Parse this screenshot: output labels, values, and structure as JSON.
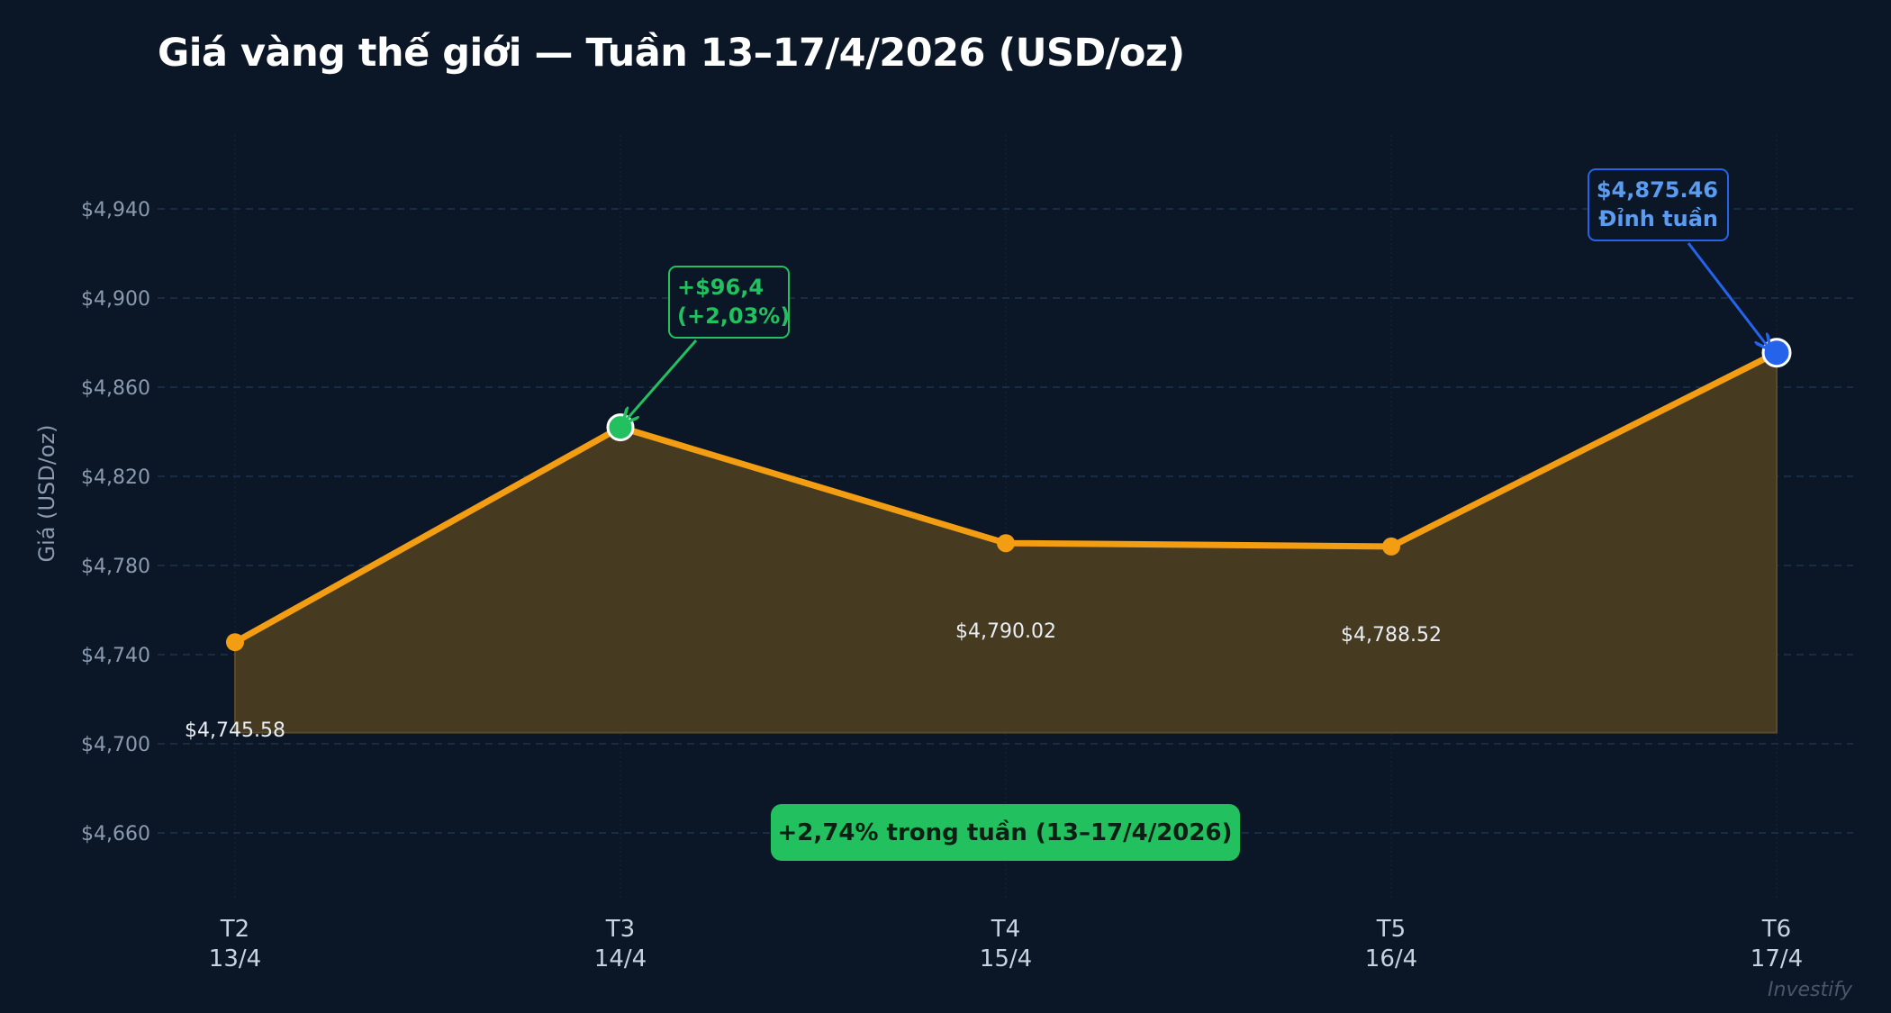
{
  "title": "Giá vàng thế giới — Tuần 13–17/4/2026 (USD/oz)",
  "colors": {
    "background": "#0b1727",
    "line": "#f29d12",
    "area_fill": "#463a21",
    "grid": "#1e3350",
    "gain": "#22c05f",
    "peak": "#2563eb",
    "peak_text": "#5b9cf0",
    "tick_text": "#8a9bb0"
  },
  "chart_data": {
    "type": "area",
    "title": "Giá vàng thế giới — Tuần 13–17/4/2026 (USD/oz)",
    "xlabel": "",
    "ylabel": "Giá (USD/oz)",
    "ylim": [
      4628,
      4990
    ],
    "yticks": [
      4660,
      4700,
      4740,
      4780,
      4820,
      4860,
      4900,
      4940
    ],
    "ytick_labels": [
      "$4,660",
      "$4,700",
      "$4,740",
      "$4,780",
      "$4,820",
      "$4,860",
      "$4,900",
      "$4,940"
    ],
    "grid": true,
    "legend": null,
    "area_baseline": 4705,
    "categories": [
      "T2\n13/4",
      "T3\n14/4",
      "T4\n15/4",
      "T5\n16/4",
      "T6\n17/4"
    ],
    "x_labels": [
      {
        "day": "T2",
        "date": "13/4"
      },
      {
        "day": "T3",
        "date": "14/4"
      },
      {
        "day": "T4",
        "date": "15/4"
      },
      {
        "day": "T5",
        "date": "16/4"
      },
      {
        "day": "T6",
        "date": "17/4"
      }
    ],
    "series": [
      {
        "name": "Giá vàng (USD/oz)",
        "values": [
          4745.58,
          4841.98,
          4790.02,
          4788.52,
          4875.46
        ]
      }
    ],
    "data_labels": [
      "$4,745.58",
      "",
      "$4,790.02",
      "$4,788.52",
      ""
    ],
    "annotations": [
      {
        "target_index": 1,
        "line1": "+$96,4",
        "line2": "(+2,03%)",
        "color": "#22c05f"
      },
      {
        "target_index": 4,
        "line1": "$4,875.46",
        "line2": "Đỉnh tuần",
        "color": "#2563eb"
      }
    ],
    "summary_badge": "+2,74% trong tuần  (13–17/4/2026)",
    "watermark": "Investify"
  }
}
